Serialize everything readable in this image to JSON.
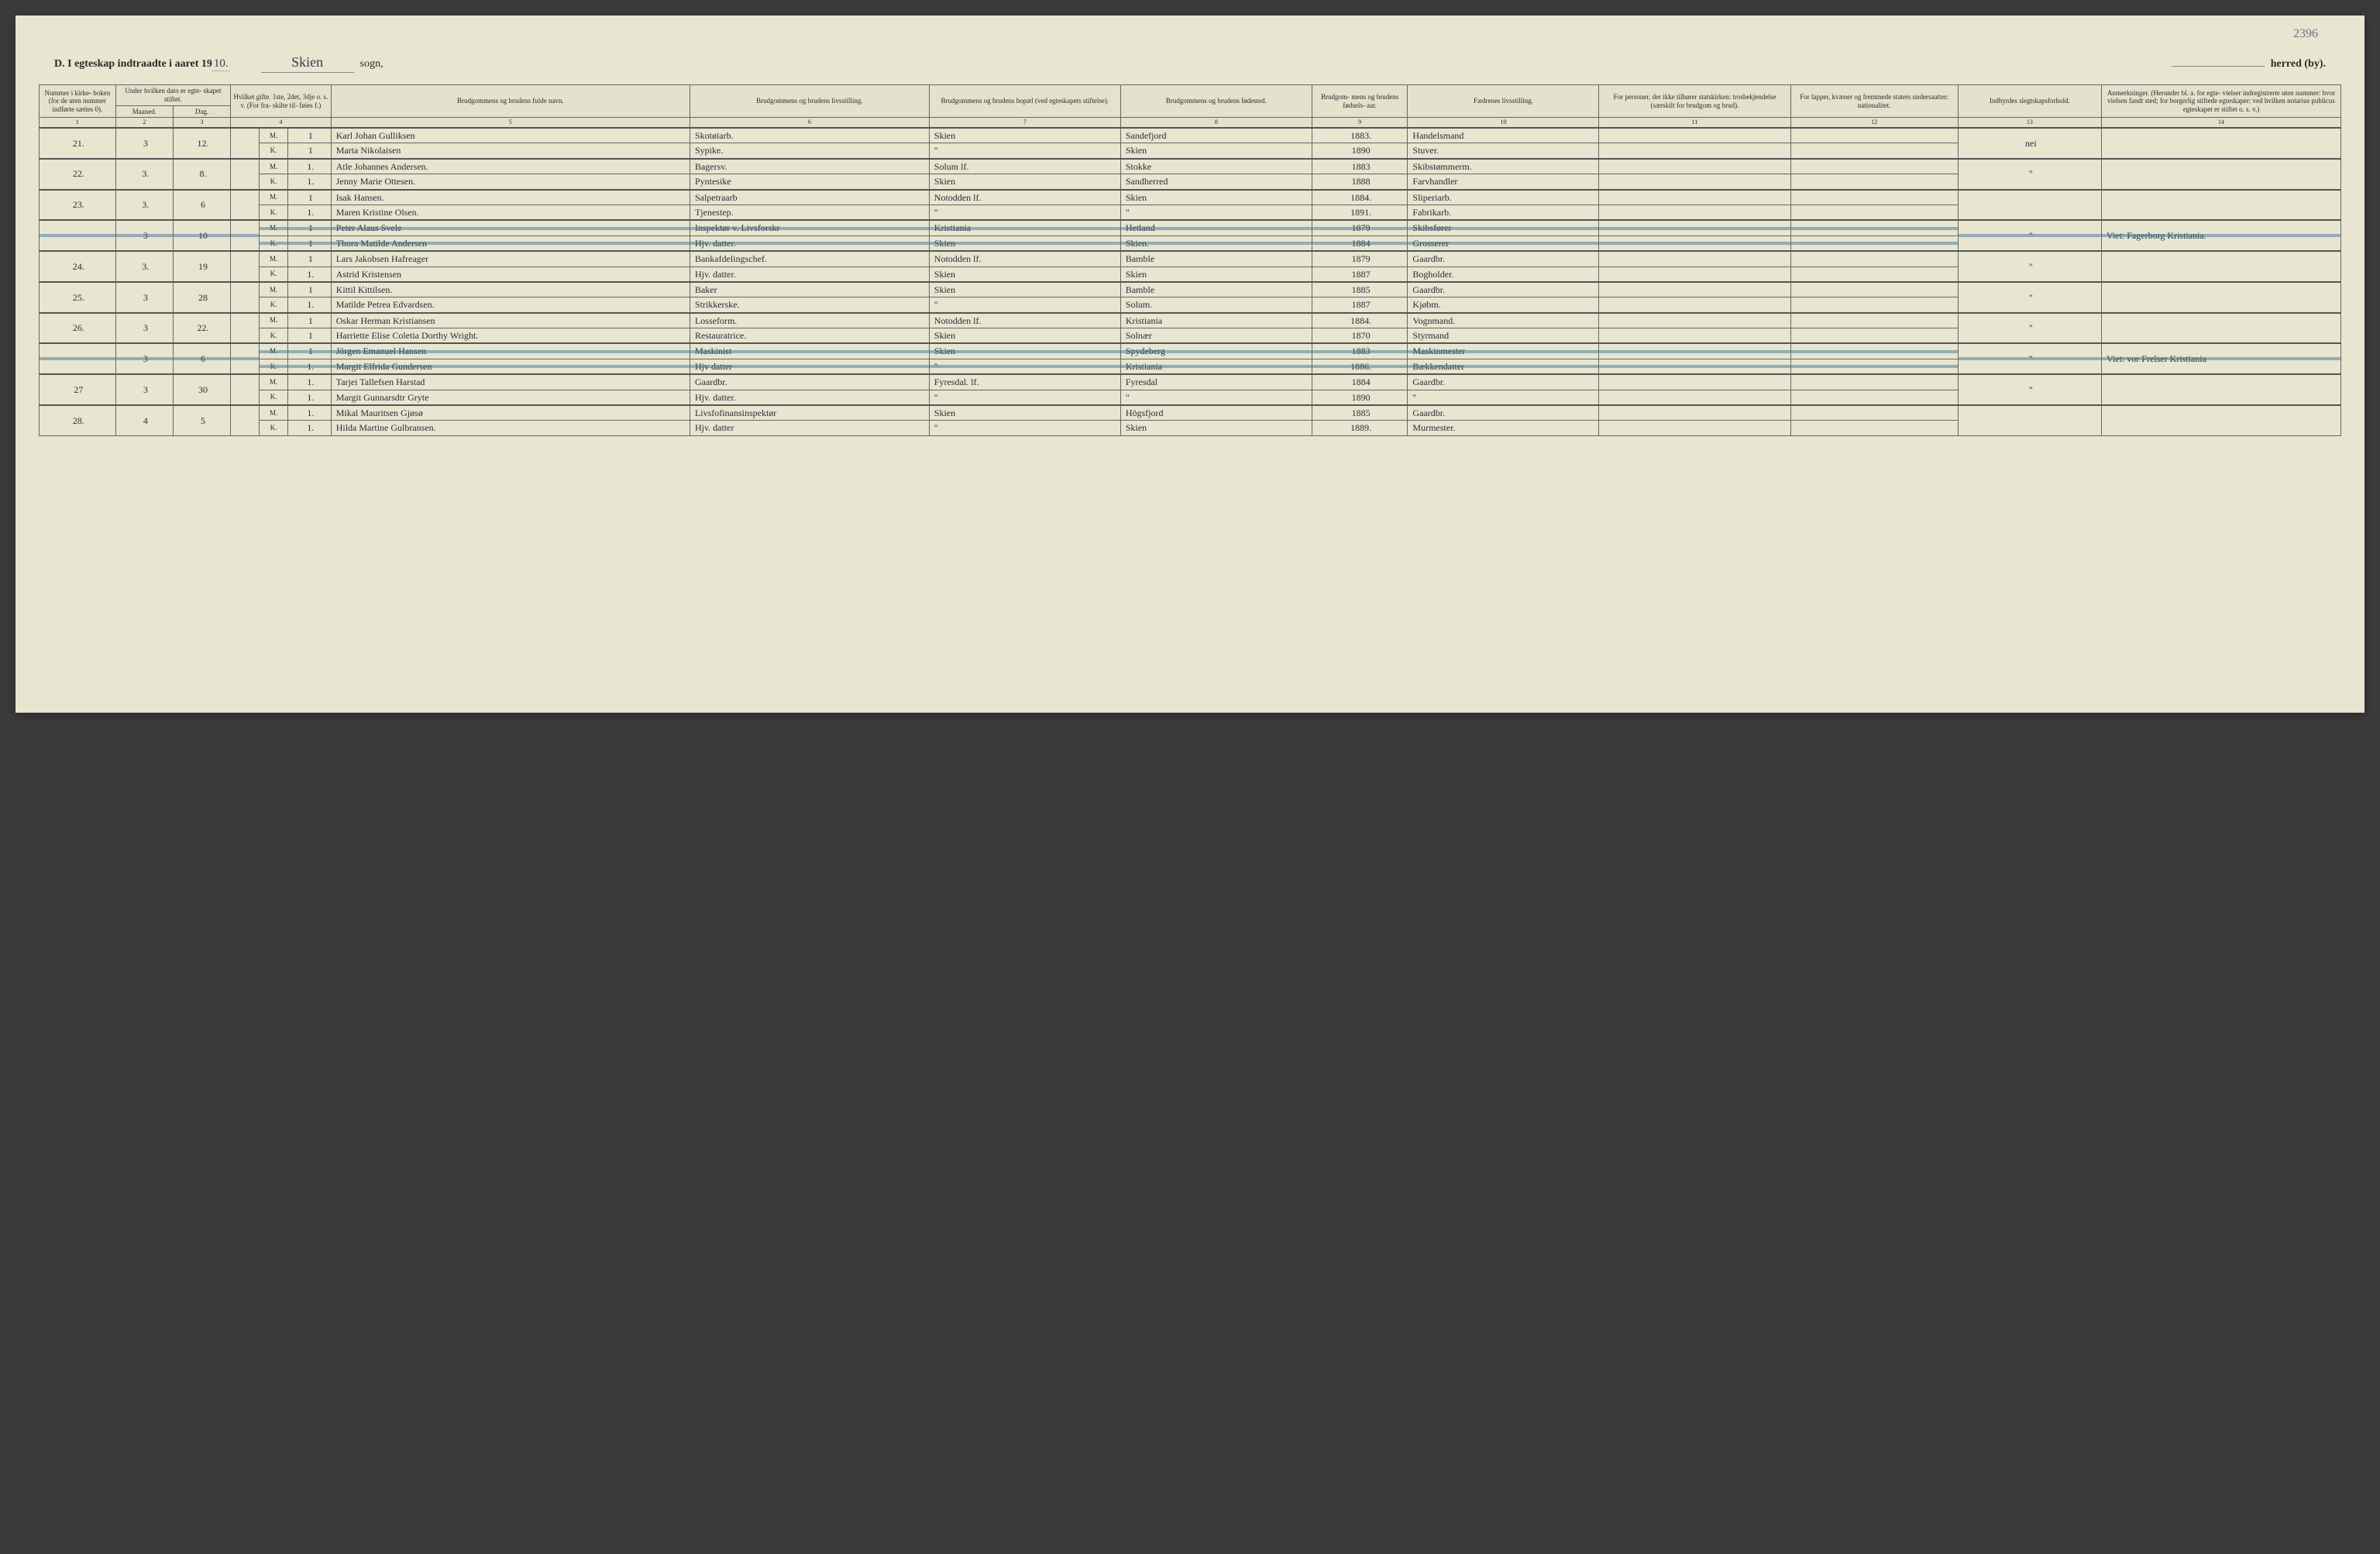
{
  "page_number_annotation": "2396",
  "title": {
    "prefix": "D.",
    "text": "I egteskap indtraadte i aaret 19",
    "year_suffix": "10.",
    "sogn_value": "Skien",
    "sogn_label": "sogn,",
    "herred_value": "",
    "herred_label": "herred (by)."
  },
  "columns": [
    {
      "num": "1",
      "label": "Nummer i kirke- boken (for de uten nummer indførte sættes 0).",
      "w": "3.2%"
    },
    {
      "num": "2",
      "label": "Under hvilken dato er egte- skapet stiftet.",
      "sub": [
        "Maaned.",
        "Dag."
      ],
      "w": "4.8%"
    },
    {
      "num": "3",
      "label": "",
      "w": "0%"
    },
    {
      "num": "4",
      "label": "Hvilket gifte. 1ste, 2det, 3dje o. s. v. (For fra- skilte til- føies f.)",
      "w": "3.2%"
    },
    {
      "num": "5",
      "label": "Brudgommens og brudens fulde navn.",
      "w": "15%"
    },
    {
      "num": "6",
      "label": "Brudgommens og brudens livsstilling.",
      "w": "10%"
    },
    {
      "num": "7",
      "label": "Brudgommens og brudens bopæl (ved egteskapets stiftelse).",
      "w": "8%"
    },
    {
      "num": "8",
      "label": "Brudgommens og brudens fødested.",
      "w": "8%"
    },
    {
      "num": "9",
      "label": "Brudgom- mens og brudens fødsels- aar.",
      "w": "4%"
    },
    {
      "num": "10",
      "label": "Fædrenes livsstilling.",
      "w": "8%"
    },
    {
      "num": "11",
      "label": "For personer, der ikke tilhører statskirken: trosbekjendelse (særskilt for brudgom og brud).",
      "w": "8%"
    },
    {
      "num": "12",
      "label": "For lapper, kvæner og fremmede staters undersaatter: nationalitet.",
      "w": "7%"
    },
    {
      "num": "13",
      "label": "Indbyrdes slegtskapsforhold.",
      "w": "6%"
    },
    {
      "num": "14",
      "label": "Anmerkninger. (Herunder bl. a. for egte- vielser indregistrerte uten nummer: hvor vielsen fandt sted; for borgerlig stiftede egteskaper: ved hvilken notarius publicus egteskapet er stiftet o. s. v.)",
      "w": "10%"
    }
  ],
  "sub_mk": {
    "m": "M.",
    "k": "K."
  },
  "entries": [
    {
      "num": "21.",
      "month": "3",
      "day": "12.",
      "struck": false,
      "m": {
        "gifte": "1",
        "name": "Karl Johan Gulliksen",
        "stilling": "Skotøiarb.",
        "bopael": "Skien",
        "fode": "Sandefjord",
        "aar": "1883.",
        "faedre": "Handelsmand"
      },
      "k": {
        "gifte": "1",
        "name": "Marta Nikolaisen",
        "stilling": "Sypike.",
        "bopael": "\"",
        "fode": "Skien",
        "aar": "1890",
        "faedre": "Stuver."
      },
      "slegt": "nei",
      "anm": ""
    },
    {
      "num": "22.",
      "month": "3.",
      "day": "8.",
      "struck": false,
      "m": {
        "gifte": "1.",
        "name": "Atle Johannes Andersen.",
        "stilling": "Bagersv.",
        "bopael": "Solum  lf.",
        "fode": "Stokke",
        "aar": "1883",
        "faedre": "Skibstømmerm."
      },
      "k": {
        "gifte": "1.",
        "name": "Jenny Marie Ottesen.",
        "stilling": "Pyntesike",
        "bopael": "Skien",
        "fode": "Sandherred",
        "aar": "1888",
        "faedre": "Farvhandler"
      },
      "slegt": "\"",
      "anm": ""
    },
    {
      "num": "23.",
      "month": "3.",
      "day": "6",
      "struck": false,
      "m": {
        "gifte": "1",
        "name": "Isak Hansen.",
        "stilling": "Salpetraarb",
        "bopael": "Notodden  lf.",
        "fode": "Skien",
        "aar": "1884.",
        "faedre": "Sliperiarb."
      },
      "k": {
        "gifte": "1.",
        "name": "Maren Kristine Olsen.",
        "stilling": "Tjenestep.",
        "bopael": "\"",
        "fode": "\"",
        "aar": "1891.",
        "faedre": "Fabrikarb."
      },
      "slegt": "",
      "anm": ""
    },
    {
      "num": "",
      "month": "3",
      "day": "10",
      "struck": true,
      "m": {
        "gifte": "1",
        "name": "Peter Alaus Svele",
        "stilling": "Inspektør v. Livsforskr",
        "bopael": "Kristiania",
        "fode": "Hetland",
        "aar": "1879",
        "faedre": "Skibsfører"
      },
      "k": {
        "gifte": "1",
        "name": "Thora Matilde Andersen",
        "stilling": "Hjv. datter.",
        "bopael": "Skien",
        "fode": "Skien.",
        "aar": "1884",
        "faedre": "Grosserer"
      },
      "slegt": "\"",
      "anm": "Viet: Fagerborg Kristiania."
    },
    {
      "num": "24.",
      "month": "3.",
      "day": "19",
      "struck": false,
      "m": {
        "gifte": "1",
        "name": "Lars Jakobsen Hafreager",
        "stilling": "Bankafdelingschef.",
        "bopael": "Notodden  lf.",
        "fode": "Bamble",
        "aar": "1879",
        "faedre": "Gaardbr."
      },
      "k": {
        "gifte": "1.",
        "name": "Astrid Kristensen",
        "stilling": "Hjv. datter.",
        "bopael": "Skien",
        "fode": "Skien",
        "aar": "1887",
        "faedre": "Bogholder."
      },
      "slegt": "\"",
      "anm": ""
    },
    {
      "num": "25.",
      "month": "3",
      "day": "28",
      "struck": false,
      "m": {
        "gifte": "1",
        "name": "Kittil Kittilsen.",
        "stilling": "Baker",
        "bopael": "Skien",
        "fode": "Bamble",
        "aar": "1885",
        "faedre": "Gaardbr."
      },
      "k": {
        "gifte": "1.",
        "name": "Matilde Petrea Edvardsen.",
        "stilling": "Strikkerske.",
        "bopael": "\"",
        "fode": "Solum.",
        "aar": "1887",
        "faedre": "Kjøbm."
      },
      "slegt": "\"",
      "anm": ""
    },
    {
      "num": "26.",
      "month": "3",
      "day": "22.",
      "struck": false,
      "m": {
        "gifte": "1",
        "name": "Oskar Herman Kristiansen",
        "stilling": "Losseform.",
        "bopael": "Notodden  lf.",
        "fode": "Kristiania",
        "aar": "1884.",
        "faedre": "Vognmand."
      },
      "k": {
        "gifte": "1",
        "name": "Harriette Elise Coletia Dorthy Wright.",
        "stilling": "Restauratrice.",
        "bopael": "Skien",
        "fode": "Solnær",
        "aar": "1870",
        "faedre": "Styrmand"
      },
      "slegt": "\"",
      "anm": ""
    },
    {
      "num": "",
      "month": "3",
      "day": "6",
      "struck": true,
      "m": {
        "gifte": "1",
        "name": "Jörgen Emanuel Hansen",
        "stilling": "Maskinist",
        "bopael": "Skien",
        "fode": "Spydeberg",
        "aar": "1883",
        "faedre": "Maskinmester"
      },
      "k": {
        "gifte": "1.",
        "name": "Margit Elfrida Gundersen",
        "stilling": "Hjv datter",
        "bopael": "\"",
        "fode": "Kristiania",
        "aar": "1886.",
        "faedre": "Bækkendatter"
      },
      "slegt": "\"",
      "anm": "Viet: vor Frelser Kristiania"
    },
    {
      "num": "27",
      "month": "3",
      "day": "30",
      "struck": false,
      "m": {
        "gifte": "1.",
        "name": "Tarjei Tallefsen Harstad",
        "stilling": "Gaardbr.",
        "bopael": "Fyresdal.  lf.",
        "fode": "Fyresdal",
        "aar": "1884",
        "faedre": "Gaardbr."
      },
      "k": {
        "gifte": "1.",
        "name": "Margit Gunnarsdtr Gryte",
        "stilling": "Hjv. datter.",
        "bopael": "\"",
        "fode": "\"",
        "aar": "1890",
        "faedre": "\""
      },
      "slegt": "\"",
      "anm": ""
    },
    {
      "num": "28.",
      "month": "4",
      "day": "5",
      "struck": false,
      "m": {
        "gifte": "1.",
        "name": "Mikal Mauritsen Gjøsø",
        "stilling": "Livsfofinansinspektør",
        "bopael": "Skien",
        "fode": "Högsfjord",
        "aar": "1885",
        "faedre": "Gaardbr."
      },
      "k": {
        "gifte": "1.",
        "name": "Hilda Martine Gulbransen.",
        "stilling": "Hjv. datter",
        "bopael": "\"",
        "fode": "Skien",
        "aar": "1889.",
        "faedre": "Murmester."
      },
      "slegt": "",
      "anm": ""
    }
  ],
  "colors": {
    "page_bg": "#e8e5d0",
    "border": "#666666",
    "text_print": "#2a2a2a",
    "text_hand": "#2b2b3b",
    "strike": "rgba(60,120,150,0.5)",
    "annotation": "#7a6a8a"
  }
}
